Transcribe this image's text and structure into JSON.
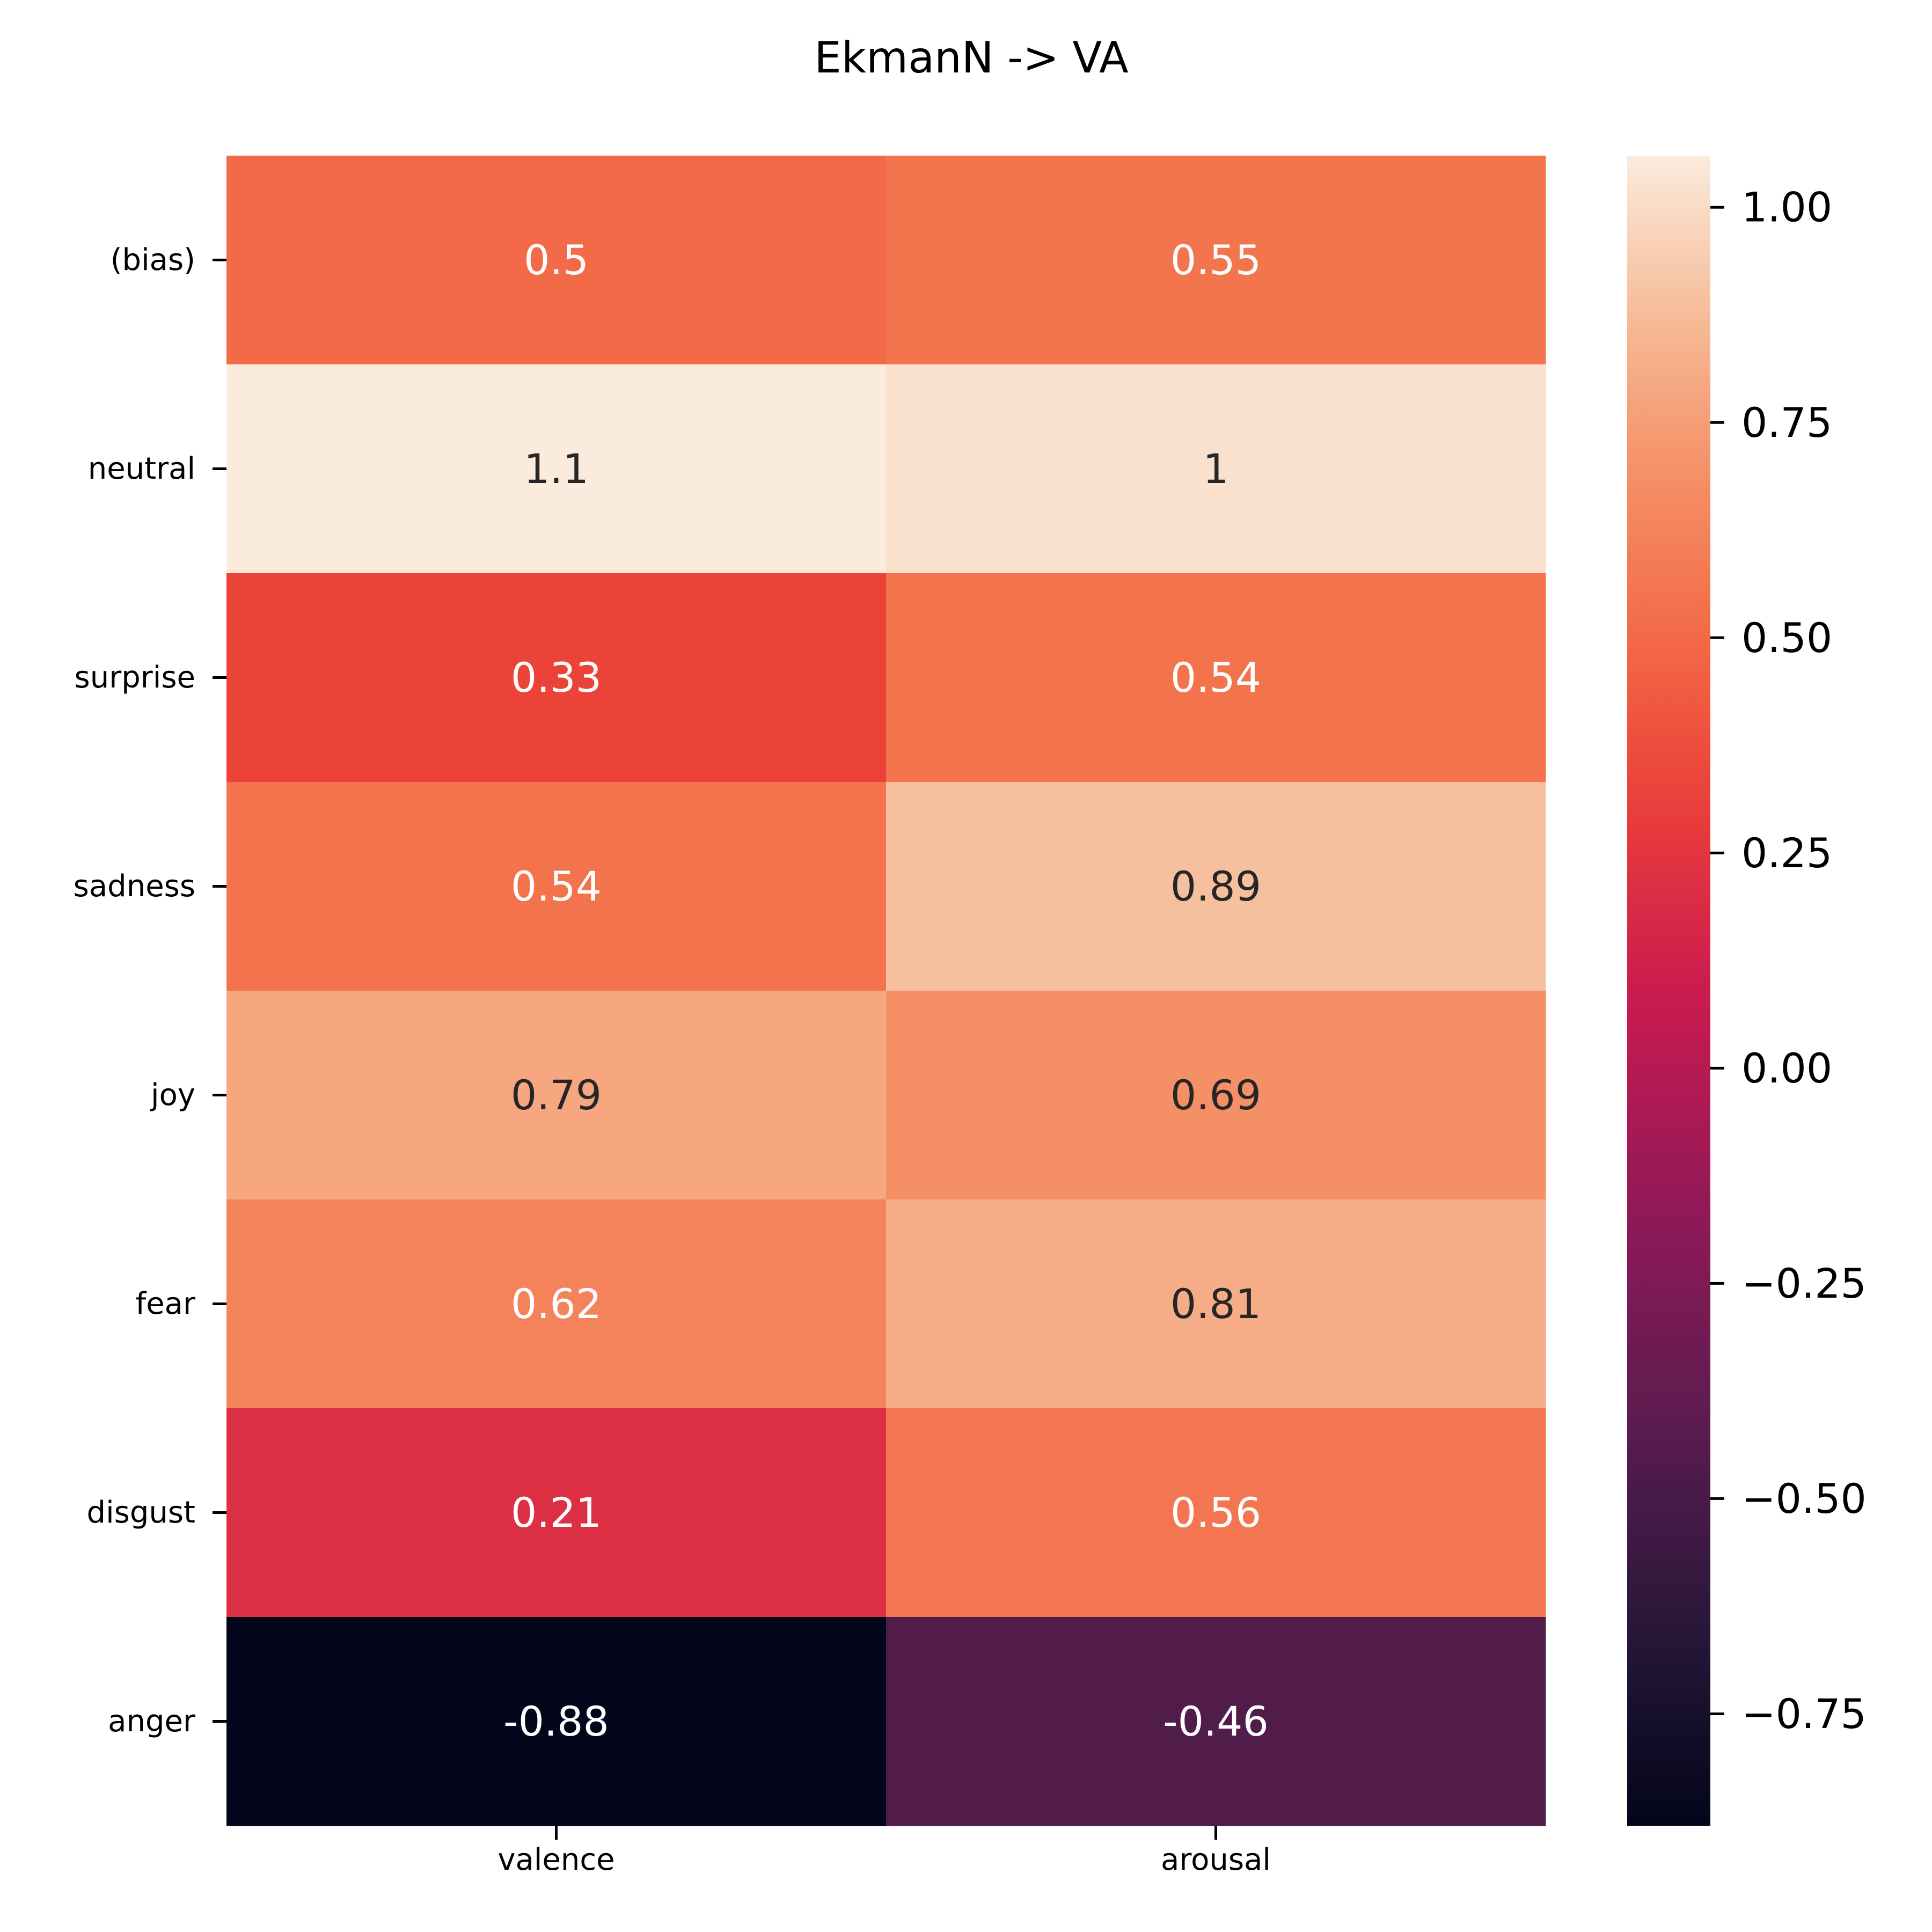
{
  "chart_data": {
    "type": "heatmap",
    "title": "EkmanN -> VA",
    "rows": [
      "(bias)",
      "neutral",
      "surprise",
      "sadness",
      "joy",
      "fear",
      "disgust",
      "anger"
    ],
    "columns": [
      "valence",
      "arousal"
    ],
    "values": [
      [
        0.5,
        0.55
      ],
      [
        1.06,
        1.02
      ],
      [
        0.33,
        0.54
      ],
      [
        0.54,
        0.89
      ],
      [
        0.79,
        0.69
      ],
      [
        0.62,
        0.81
      ],
      [
        0.21,
        0.56
      ],
      [
        -0.88,
        -0.46
      ]
    ],
    "annotations": [
      [
        "0.5",
        "0.55"
      ],
      [
        "1.1",
        "1"
      ],
      [
        "0.33",
        "0.54"
      ],
      [
        "0.54",
        "0.89"
      ],
      [
        "0.79",
        "0.69"
      ],
      [
        "0.62",
        "0.81"
      ],
      [
        "0.21",
        "0.56"
      ],
      [
        "-0.88",
        "-0.46"
      ]
    ],
    "colormap": "rocket",
    "colorbar": {
      "range": [
        -0.88,
        1.06
      ],
      "ticks": [
        1.0,
        0.75,
        0.5,
        0.25,
        0.0,
        -0.25,
        -0.5,
        -0.75
      ],
      "tick_labels": [
        "1.00",
        "0.75",
        "0.50",
        "0.25",
        "0.00",
        "−0.25",
        "−0.50",
        "−0.75"
      ]
    }
  }
}
